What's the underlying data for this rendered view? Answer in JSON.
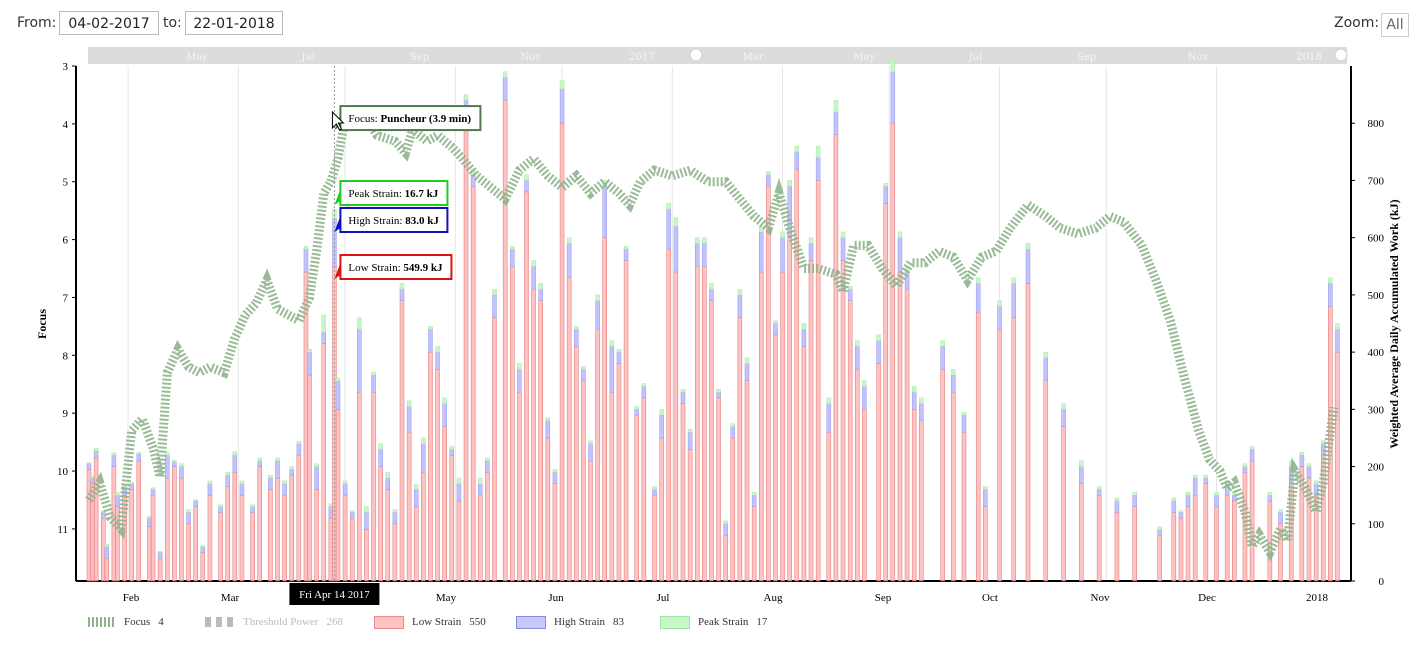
{
  "range": {
    "from_label": "From:",
    "from_value": "04-02-2017",
    "to_label": "to:",
    "to_value": "22-01-2018",
    "zoom_label": "Zoom:",
    "zoom_all": "All"
  },
  "navigator": {
    "labels": [
      "May",
      "Jul",
      "Sep",
      "Nov",
      "2017",
      "Mar",
      "May",
      "Jul",
      "Sep",
      "Nov",
      "2018"
    ]
  },
  "colors": {
    "focus": "#8fb48c",
    "low": "#ffb3b3",
    "low_border": "#e07070",
    "high": "#c2c2ff",
    "peak": "#c6f7c6",
    "tooltip_focus": "#4f7a4a",
    "tooltip_peak": "#22cc22",
    "tooltip_high": "#1010c0",
    "tooltip_low": "#dd1111"
  },
  "chart_data": {
    "type": "bar",
    "x_ticks": [
      "Feb",
      "Mar",
      "Apr",
      "May",
      "Jun",
      "Jul",
      "Aug",
      "Sep",
      "Oct",
      "Nov",
      "Dec",
      "2018"
    ],
    "y_left": {
      "label": "Focus",
      "ticks": [
        "3",
        "4",
        "5",
        "6",
        "7",
        "8",
        "9",
        "10",
        "11"
      ],
      "range": [
        3,
        11.9
      ],
      "reversed": true
    },
    "y_right": {
      "label": "Weighted Average Daily Accumulated Work (kJ)",
      "ticks": [
        "0",
        "100",
        "200",
        "300",
        "400",
        "500",
        "600",
        "700",
        "800"
      ],
      "range": [
        0,
        900
      ]
    },
    "focus_series": {
      "name": "Focus",
      "points": [
        [
          "Feb-04",
          10.5
        ],
        [
          "Feb-07",
          10.2
        ],
        [
          "Feb-10",
          10.8
        ],
        [
          "Feb-13",
          11.0
        ],
        [
          "Feb-16",
          9.3
        ],
        [
          "Feb-19",
          9.1
        ],
        [
          "Feb-22",
          9.6
        ],
        [
          "Feb-24",
          10.1
        ],
        [
          "Feb-26",
          8.3
        ],
        [
          "Mar-01",
          7.9
        ],
        [
          "Mar-04",
          8.2
        ],
        [
          "Mar-07",
          8.3
        ],
        [
          "Mar-10",
          8.2
        ],
        [
          "Mar-14",
          8.3
        ],
        [
          "Mar-17",
          7.7
        ],
        [
          "Mar-20",
          7.3
        ],
        [
          "Mar-23",
          7.1
        ],
        [
          "Mar-26",
          6.7
        ],
        [
          "Mar-29",
          7.2
        ],
        [
          "Apr-01",
          7.3
        ],
        [
          "Apr-04",
          7.4
        ],
        [
          "Apr-07",
          7.0
        ],
        [
          "Apr-09",
          6.2
        ],
        [
          "Apr-11",
          5.2
        ],
        [
          "Apr-13",
          5.0
        ],
        [
          "Apr-15",
          4.6
        ],
        [
          "Apr-17",
          3.9
        ],
        [
          "Apr-20",
          4.0
        ],
        [
          "Apr-23",
          3.9
        ],
        [
          "Apr-26",
          4.2
        ],
        [
          "May-01",
          4.3
        ],
        [
          "May-04",
          4.5
        ],
        [
          "May-06",
          4.1
        ],
        [
          "May-10",
          4.3
        ],
        [
          "May-13",
          4.2
        ],
        [
          "May-17",
          4.4
        ],
        [
          "May-20",
          4.6
        ],
        [
          "May-24",
          4.9
        ],
        [
          "May-28",
          5.1
        ],
        [
          "Jun-01",
          5.3
        ],
        [
          "Jun-05",
          4.8
        ],
        [
          "Jun-09",
          4.6
        ],
        [
          "Jun-13",
          4.9
        ],
        [
          "Jun-17",
          5.1
        ],
        [
          "Jun-21",
          4.9
        ],
        [
          "Jun-25",
          5.2
        ],
        [
          "Jun-29",
          5.0
        ],
        [
          "Jul-03",
          5.2
        ],
        [
          "Jul-06",
          5.4
        ],
        [
          "Jul-09",
          5.0
        ],
        [
          "Jul-13",
          4.8
        ],
        [
          "Jul-18",
          4.9
        ],
        [
          "Jul-23",
          4.8
        ],
        [
          "Jul-28",
          5.0
        ],
        [
          "Aug-02",
          5.0
        ],
        [
          "Aug-06",
          5.3
        ],
        [
          "Aug-10",
          5.6
        ],
        [
          "Aug-14",
          5.8
        ],
        [
          "Aug-17",
          5.2
        ],
        [
          "Aug-20",
          5.8
        ],
        [
          "Aug-24",
          6.5
        ],
        [
          "Aug-28",
          6.5
        ],
        [
          "Sep-02",
          6.6
        ],
        [
          "Sep-04",
          6.9
        ],
        [
          "Sep-07",
          6.1
        ],
        [
          "Sep-11",
          6.1
        ],
        [
          "Sep-15",
          6.5
        ],
        [
          "Sep-19",
          6.8
        ],
        [
          "Sep-23",
          6.4
        ],
        [
          "Sep-27",
          6.4
        ],
        [
          "Oct-01",
          6.2
        ],
        [
          "Oct-05",
          6.3
        ],
        [
          "Oct-09",
          6.7
        ],
        [
          "Oct-13",
          6.3
        ],
        [
          "Oct-17",
          6.2
        ],
        [
          "Oct-21",
          5.8
        ],
        [
          "Oct-26",
          5.4
        ],
        [
          "Oct-31",
          5.6
        ],
        [
          "Nov-04",
          5.8
        ],
        [
          "Nov-09",
          5.9
        ],
        [
          "Nov-14",
          5.8
        ],
        [
          "Nov-18",
          5.6
        ],
        [
          "Nov-22",
          5.7
        ],
        [
          "Nov-27",
          6.1
        ],
        [
          "Dec-01",
          6.7
        ],
        [
          "Dec-05",
          7.4
        ],
        [
          "Dec-09",
          8.4
        ],
        [
          "Dec-13",
          9.3
        ],
        [
          "Dec-16",
          9.8
        ],
        [
          "Dec-19",
          10.0
        ],
        [
          "Dec-21",
          10.3
        ],
        [
          "Dec-23",
          10.2
        ],
        [
          "Dec-26",
          10.7
        ],
        [
          "Dec-28",
          11.3
        ],
        [
          "Dec-30",
          11.1
        ],
        [
          "Jan-02",
          11.4
        ],
        [
          "Jan-05",
          11.0
        ],
        [
          "Jan-07",
          11.2
        ],
        [
          "Jan-09",
          10.0
        ],
        [
          "Jan-12",
          10.3
        ],
        [
          "Jan-15",
          10.7
        ],
        [
          "Jan-17",
          10.2
        ],
        [
          "Jan-20",
          8.9
        ]
      ]
    },
    "series": [
      {
        "name": "Low Strain",
        "total": "550"
      },
      {
        "name": "High Strain",
        "total": "83"
      },
      {
        "name": "Peak Strain",
        "total": "17"
      },
      {
        "name": "Threshold Power",
        "total": "268",
        "disabled": true
      },
      {
        "name": "Focus",
        "total": "4"
      }
    ],
    "bars_kj": [
      [
        "Feb-04",
        195,
        10,
        2
      ],
      [
        "Feb-05",
        170,
        10,
        3
      ],
      [
        "Feb-06",
        215,
        12,
        5
      ],
      [
        "Feb-08",
        110,
        10,
        2
      ],
      [
        "Feb-09",
        40,
        20,
        4
      ],
      [
        "Feb-11",
        200,
        20,
        4
      ],
      [
        "Feb-12",
        130,
        20,
        4
      ],
      [
        "Feb-14",
        150,
        15,
        3
      ],
      [
        "Feb-16",
        160,
        10,
        2
      ],
      [
        "Feb-18",
        210,
        12,
        3
      ],
      [
        "Feb-21",
        95,
        15,
        3
      ],
      [
        "Feb-22",
        150,
        10,
        3
      ],
      [
        "Feb-24",
        40,
        10,
        2
      ],
      [
        "Feb-26",
        180,
        40,
        5
      ],
      [
        "Feb-28",
        200,
        8,
        3
      ],
      [
        "Mar-02",
        180,
        20,
        5
      ],
      [
        "Mar-04",
        100,
        20,
        5
      ],
      [
        "Mar-06",
        130,
        10,
        2
      ],
      [
        "Mar-08",
        50,
        10,
        2
      ],
      [
        "Mar-10",
        150,
        20,
        5
      ],
      [
        "Mar-13",
        120,
        10,
        3
      ],
      [
        "Mar-15",
        165,
        20,
        5
      ],
      [
        "Mar-17",
        190,
        30,
        6
      ],
      [
        "Mar-19",
        150,
        20,
        5
      ],
      [
        "Mar-22",
        120,
        10,
        3
      ],
      [
        "Mar-24",
        200,
        10,
        5
      ],
      [
        "Mar-27",
        160,
        20,
        5
      ],
      [
        "Mar-29",
        180,
        30,
        5
      ],
      [
        "Mar-31",
        150,
        20,
        5
      ],
      [
        "Apr-02",
        185,
        10,
        5
      ],
      [
        "Apr-04",
        220,
        20,
        4
      ],
      [
        "Apr-06",
        540,
        40,
        5
      ],
      [
        "Apr-07",
        360,
        40,
        5
      ],
      [
        "Apr-09",
        160,
        40,
        5
      ],
      [
        "Apr-11",
        415,
        20,
        30
      ],
      [
        "Apr-13",
        110,
        20,
        5
      ],
      [
        "Apr-14",
        549.9,
        83,
        16.7
      ],
      [
        "Apr-15",
        300,
        50,
        5
      ],
      [
        "Apr-17",
        150,
        20,
        5
      ],
      [
        "Apr-19",
        110,
        10,
        3
      ],
      [
        "Apr-21",
        330,
        110,
        20
      ],
      [
        "Apr-23",
        90,
        30,
        10
      ],
      [
        "Apr-25",
        330,
        30,
        5
      ],
      [
        "Apr-27",
        200,
        30,
        10
      ],
      [
        "Apr-29",
        160,
        20,
        10
      ],
      [
        "May-01",
        100,
        20,
        5
      ],
      [
        "May-03",
        490,
        20,
        10
      ],
      [
        "May-05",
        260,
        45,
        10
      ],
      [
        "May-07",
        130,
        30,
        8
      ],
      [
        "May-09",
        190,
        50,
        10
      ],
      [
        "May-11",
        400,
        40,
        5
      ],
      [
        "May-13",
        370,
        30,
        10
      ],
      [
        "May-15",
        270,
        40,
        10
      ],
      [
        "May-17",
        220,
        10,
        5
      ],
      [
        "May-19",
        140,
        30,
        10
      ],
      [
        "May-21",
        820,
        20,
        10
      ],
      [
        "May-23",
        690,
        20,
        10
      ],
      [
        "May-25",
        150,
        20,
        10
      ],
      [
        "May-27",
        190,
        20,
        5
      ],
      [
        "May-29",
        460,
        40,
        10
      ],
      [
        "Jun-01",
        840,
        40,
        10
      ],
      [
        "Jun-03",
        550,
        30,
        5
      ],
      [
        "Jun-05",
        330,
        40,
        10
      ],
      [
        "Jun-07",
        680,
        20,
        10
      ],
      [
        "Jun-09",
        510,
        40,
        10
      ],
      [
        "Jun-11",
        490,
        20,
        10
      ],
      [
        "Jun-13",
        250,
        30,
        5
      ],
      [
        "Jun-15",
        170,
        20,
        5
      ],
      [
        "Jun-17",
        800,
        60,
        15
      ],
      [
        "Jun-19",
        530,
        60,
        10
      ],
      [
        "Jun-21",
        410,
        30,
        5
      ],
      [
        "Jun-23",
        350,
        20,
        5
      ],
      [
        "Jun-25",
        210,
        30,
        5
      ],
      [
        "Jun-27",
        440,
        50,
        10
      ],
      [
        "Jun-29",
        600,
        90,
        10
      ],
      [
        "Jul-01",
        330,
        80,
        10
      ],
      [
        "Jul-03",
        380,
        20,
        5
      ],
      [
        "Jul-05",
        560,
        20,
        5
      ],
      [
        "Jul-08",
        290,
        10,
        5
      ],
      [
        "Jul-10",
        320,
        20,
        5
      ],
      [
        "Jul-13",
        150,
        10,
        5
      ],
      [
        "Jul-15",
        250,
        40,
        10
      ],
      [
        "Jul-17",
        580,
        70,
        10
      ],
      [
        "Jul-19",
        540,
        80,
        15
      ],
      [
        "Jul-21",
        310,
        20,
        5
      ],
      [
        "Jul-23",
        230,
        30,
        5
      ],
      [
        "Jul-25",
        550,
        40,
        10
      ],
      [
        "Jul-27",
        550,
        40,
        10
      ],
      [
        "Jul-29",
        490,
        20,
        10
      ],
      [
        "Jul-31",
        320,
        10,
        5
      ],
      [
        "Aug-02",
        80,
        20,
        5
      ],
      [
        "Aug-04",
        250,
        20,
        5
      ],
      [
        "Aug-06",
        460,
        40,
        10
      ],
      [
        "Aug-08",
        350,
        30,
        10
      ],
      [
        "Aug-10",
        130,
        20,
        5
      ],
      [
        "Aug-12",
        540,
        70,
        10
      ],
      [
        "Aug-14",
        690,
        20,
        5
      ],
      [
        "Aug-16",
        430,
        20,
        5
      ],
      [
        "Aug-18",
        540,
        60,
        10
      ],
      [
        "Aug-20",
        600,
        90,
        10
      ],
      [
        "Aug-22",
        720,
        30,
        10
      ],
      [
        "Aug-24",
        410,
        30,
        10
      ],
      [
        "Aug-26",
        560,
        30,
        10
      ],
      [
        "Aug-28",
        700,
        40,
        20
      ],
      [
        "Aug-31",
        260,
        50,
        10
      ],
      [
        "Sep-02",
        780,
        40,
        20
      ],
      [
        "Sep-04",
        560,
        40,
        10
      ],
      [
        "Sep-06",
        490,
        20,
        5
      ],
      [
        "Sep-08",
        370,
        40,
        10
      ],
      [
        "Sep-10",
        300,
        40,
        10
      ],
      [
        "Sep-14",
        380,
        40,
        10
      ],
      [
        "Sep-16",
        660,
        30,
        5
      ],
      [
        "Sep-18",
        800,
        90,
        20
      ],
      [
        "Sep-20",
        540,
        60,
        10
      ],
      [
        "Sep-22",
        510,
        30,
        10
      ],
      [
        "Sep-24",
        300,
        30,
        10
      ],
      [
        "Sep-26",
        280,
        30,
        10
      ],
      [
        "Oct-02",
        370,
        40,
        10
      ],
      [
        "Oct-05",
        330,
        30,
        10
      ],
      [
        "Oct-08",
        260,
        30,
        5
      ],
      [
        "Oct-12",
        470,
        50,
        10
      ],
      [
        "Oct-14",
        130,
        30,
        5
      ],
      [
        "Oct-18",
        440,
        40,
        10
      ],
      [
        "Oct-22",
        460,
        60,
        10
      ],
      [
        "Oct-26",
        520,
        60,
        10
      ],
      [
        "Oct-31",
        350,
        40,
        10
      ],
      [
        "Nov-05",
        270,
        30,
        10
      ],
      [
        "Nov-10",
        170,
        30,
        10
      ],
      [
        "Nov-15",
        150,
        10,
        5
      ],
      [
        "Nov-20",
        120,
        20,
        5
      ],
      [
        "Nov-25",
        130,
        20,
        5
      ],
      [
        "Dec-02",
        80,
        10,
        5
      ],
      [
        "Dec-06",
        120,
        20,
        5
      ],
      [
        "Dec-08",
        110,
        10,
        3
      ],
      [
        "Dec-10",
        130,
        20,
        5
      ],
      [
        "Dec-12",
        150,
        30,
        5
      ],
      [
        "Dec-15",
        170,
        10,
        5
      ],
      [
        "Dec-18",
        130,
        20,
        5
      ],
      [
        "Dec-21",
        150,
        20,
        5
      ],
      [
        "Dec-23",
        140,
        10,
        5
      ],
      [
        "Dec-26",
        190,
        10,
        5
      ],
      [
        "Dec-28",
        210,
        20,
        5
      ],
      [
        "Jan-02",
        140,
        10,
        5
      ],
      [
        "Jan-05",
        100,
        20,
        5
      ],
      [
        "Jan-08",
        170,
        30,
        10
      ],
      [
        "Jan-11",
        200,
        20,
        5
      ],
      [
        "Jan-13",
        180,
        20,
        5
      ],
      [
        "Jan-15",
        150,
        20,
        5
      ],
      [
        "Jan-17",
        220,
        20,
        5
      ],
      [
        "Jan-19",
        480,
        40,
        10
      ],
      [
        "Jan-21",
        400,
        40,
        10
      ]
    ],
    "tooltips": {
      "date_flag": "Fri Apr 14 2017",
      "focus": {
        "label": "Focus:",
        "value": "Puncheur (3.9 min)"
      },
      "peak": {
        "label": "Peak Strain:",
        "value": "16.7 kJ"
      },
      "high": {
        "label": "High Strain:",
        "value": "83.0 kJ"
      },
      "low": {
        "label": "Low Strain:",
        "value": "549.9 kJ"
      }
    }
  }
}
